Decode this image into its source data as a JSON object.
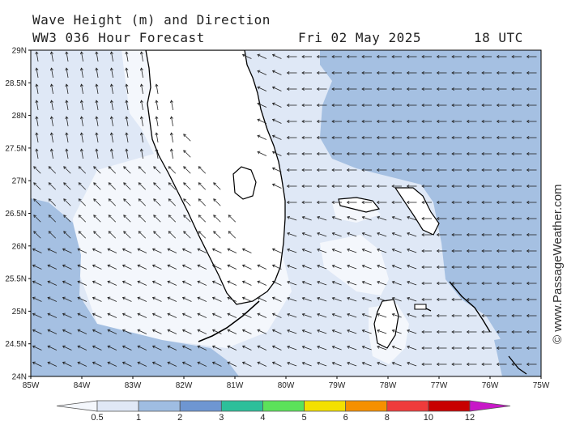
{
  "header": {
    "title": "Wave Height (m) and Direction",
    "model": "WW3 036 Hour Forecast",
    "date": "Fri 02 May 2025",
    "time": "18 UTC"
  },
  "credit": "© www.PassageWeather.com",
  "axes": {
    "lat_labels": [
      "29N",
      "28.5N",
      "28N",
      "27.5N",
      "27N",
      "26.5N",
      "26N",
      "25.5N",
      "25N",
      "24.5N",
      "24N"
    ],
    "lon_labels": [
      "85W",
      "84W",
      "83W",
      "82W",
      "81W",
      "80W",
      "79W",
      "78W",
      "77W",
      "76W",
      "75W"
    ]
  },
  "legend": {
    "labels": [
      "0.5",
      "1",
      "2",
      "3",
      "4",
      "5",
      "6",
      "8",
      "10",
      "12"
    ],
    "colors": [
      "#e0e8f6",
      "#9fbde2",
      "#6e96d2",
      "#2dbf9a",
      "#5ce25a",
      "#f3e000",
      "#f69000",
      "#ef3b3b",
      "#c80000",
      "#c818c8"
    ]
  },
  "colors": {
    "land": "#ffffff",
    "coast": "#000000",
    "wave_under_0_5": "#f4f7fc",
    "wave_0_5_to_1": "#dfe8f6",
    "wave_1_to_2": "#a5c0e2",
    "arrow": "#222222"
  }
}
